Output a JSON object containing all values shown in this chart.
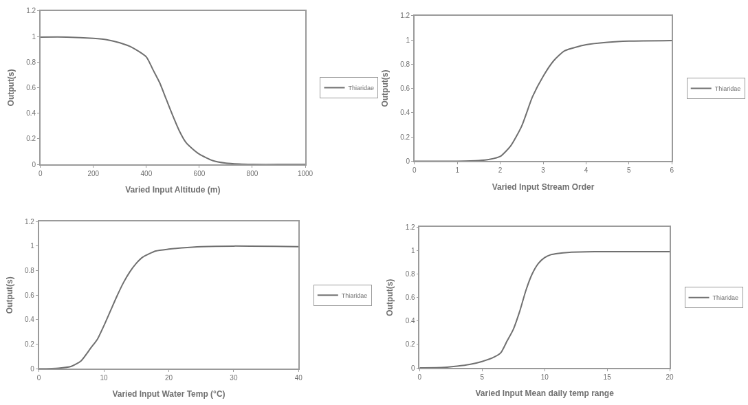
{
  "chart_data": [
    {
      "type": "line",
      "xlabel": "Varied Input Altitude (m)",
      "ylabel": "Output(s)",
      "legend": "right",
      "x": [
        0,
        100,
        200,
        250,
        300,
        350,
        400,
        425,
        450,
        475,
        500,
        525,
        550,
        575,
        600,
        650,
        700,
        750,
        800,
        900,
        1000
      ],
      "series": [
        {
          "name": "Thiaridae",
          "color": "#707070",
          "values": [
            0.995,
            0.995,
            0.985,
            0.975,
            0.95,
            0.91,
            0.84,
            0.74,
            0.64,
            0.51,
            0.38,
            0.26,
            0.17,
            0.12,
            0.08,
            0.03,
            0.01,
            0.003,
            0,
            0,
            0
          ]
        }
      ],
      "xlim": [
        0,
        1000
      ],
      "ylim": [
        0,
        1.2
      ],
      "xticks": [
        0,
        200,
        400,
        600,
        800,
        1000
      ],
      "yticks": [
        0,
        0.2,
        0.4,
        0.6,
        0.8,
        1,
        1.2
      ]
    },
    {
      "type": "line",
      "xlabel": "Varied Input Stream Order",
      "ylabel": "Output(s)",
      "legend": "right",
      "x": [
        0,
        1,
        1.5,
        1.75,
        2,
        2.25,
        2.5,
        2.75,
        3,
        3.25,
        3.5,
        4,
        4.5,
        5,
        6
      ],
      "series": [
        {
          "name": "Thiaridae",
          "color": "#707070",
          "values": [
            0,
            0,
            0.005,
            0.015,
            0.04,
            0.13,
            0.29,
            0.53,
            0.7,
            0.83,
            0.91,
            0.96,
            0.98,
            0.99,
            0.995
          ]
        }
      ],
      "xlim": [
        0,
        6
      ],
      "ylim": [
        0,
        1.2
      ],
      "xticks": [
        0,
        1,
        2,
        3,
        4,
        5,
        6
      ],
      "yticks": [
        0,
        0.2,
        0.4,
        0.6,
        0.8,
        1,
        1.2
      ]
    },
    {
      "type": "line",
      "xlabel": "Varied Input Water Temp (°C)",
      "ylabel": "Output(s)",
      "legend": "right",
      "x": [
        0,
        3,
        5,
        6.5,
        8,
        9,
        10,
        11,
        12,
        13,
        14,
        15,
        16,
        18,
        20,
        22,
        25,
        30,
        40
      ],
      "series": [
        {
          "name": "Thiaridae",
          "color": "#707070",
          "values": [
            0,
            0.005,
            0.02,
            0.065,
            0.17,
            0.24,
            0.35,
            0.47,
            0.59,
            0.7,
            0.79,
            0.86,
            0.91,
            0.96,
            0.975,
            0.985,
            0.995,
            1,
            0.995
          ]
        }
      ],
      "xlim": [
        0,
        40
      ],
      "ylim": [
        0,
        1.2
      ],
      "xticks": [
        0,
        10,
        20,
        30,
        40
      ],
      "yticks": [
        0,
        0.2,
        0.4,
        0.6,
        0.8,
        1,
        1.2
      ]
    },
    {
      "type": "line",
      "xlabel": "Varied Input Mean daily temp range",
      "ylabel": "Output(s)",
      "legend": "right",
      "x": [
        0,
        2,
        3,
        4,
        5,
        6,
        6.5,
        7,
        7.5,
        8,
        8.5,
        9,
        9.5,
        10,
        10.5,
        11,
        12,
        14,
        20
      ],
      "series": [
        {
          "name": "Thiaridae",
          "color": "#707070",
          "values": [
            0,
            0.005,
            0.015,
            0.03,
            0.055,
            0.095,
            0.13,
            0.23,
            0.33,
            0.48,
            0.66,
            0.8,
            0.89,
            0.94,
            0.965,
            0.975,
            0.985,
            0.99,
            0.99
          ]
        }
      ],
      "xlim": [
        0,
        20
      ],
      "ylim": [
        0,
        1.2
      ],
      "xticks": [
        0,
        5,
        10,
        15,
        20
      ],
      "yticks": [
        0,
        0.2,
        0.4,
        0.6,
        0.8,
        1,
        1.2
      ]
    }
  ]
}
